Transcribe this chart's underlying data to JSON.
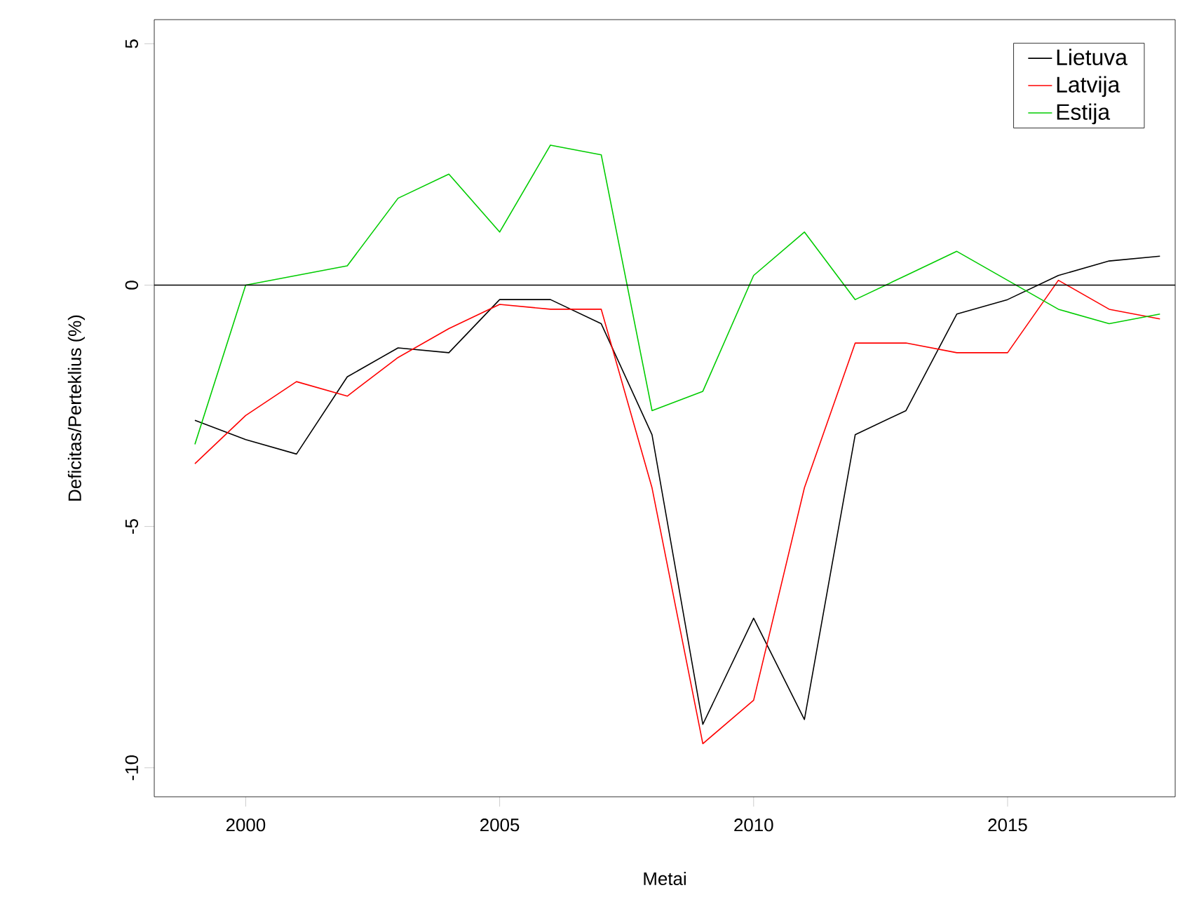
{
  "chart_data": {
    "type": "line",
    "xlabel": "Metai",
    "ylabel": "Deficitas/Perteklius (%)",
    "x": [
      1999,
      2000,
      2001,
      2002,
      2003,
      2004,
      2005,
      2006,
      2007,
      2008,
      2009,
      2010,
      2011,
      2012,
      2013,
      2014,
      2015,
      2016,
      2017,
      2018
    ],
    "series": [
      {
        "name": "Lietuva",
        "color": "#000000",
        "values": [
          -2.8,
          -3.2,
          -3.5,
          -1.9,
          -1.3,
          -1.4,
          -0.3,
          -0.3,
          -0.8,
          -3.1,
          -9.1,
          -6.9,
          -9.0,
          -3.1,
          -2.6,
          -0.6,
          -0.3,
          0.2,
          0.5,
          0.6
        ]
      },
      {
        "name": "Latvija",
        "color": "#ff0000",
        "values": [
          -3.7,
          -2.7,
          -2.0,
          -2.3,
          -1.5,
          -0.9,
          -0.4,
          -0.5,
          -0.5,
          -4.2,
          -9.5,
          -8.6,
          -4.2,
          -1.2,
          -1.2,
          -1.4,
          -1.4,
          0.1,
          -0.5,
          -0.7
        ]
      },
      {
        "name": "Estija",
        "color": "#00cc00",
        "values": [
          -3.3,
          0.0,
          0.2,
          0.4,
          1.8,
          2.3,
          1.1,
          2.9,
          2.7,
          -2.6,
          -2.2,
          0.2,
          1.1,
          -0.3,
          0.2,
          0.7,
          0.1,
          -0.5,
          -0.8,
          -0.6
        ]
      }
    ],
    "xlim": [
      1998.2,
      2018.3
    ],
    "ylim": [
      -10.6,
      5.5
    ],
    "xticks": [
      2000,
      2005,
      2010,
      2015
    ],
    "yticks": [
      -10,
      -5,
      0,
      5
    ],
    "ref_lines": [
      {
        "axis": "y",
        "value": 0,
        "color": "#000000"
      }
    ],
    "legend": "top right",
    "grid": false,
    "marker": "none",
    "line_style": "solid"
  }
}
